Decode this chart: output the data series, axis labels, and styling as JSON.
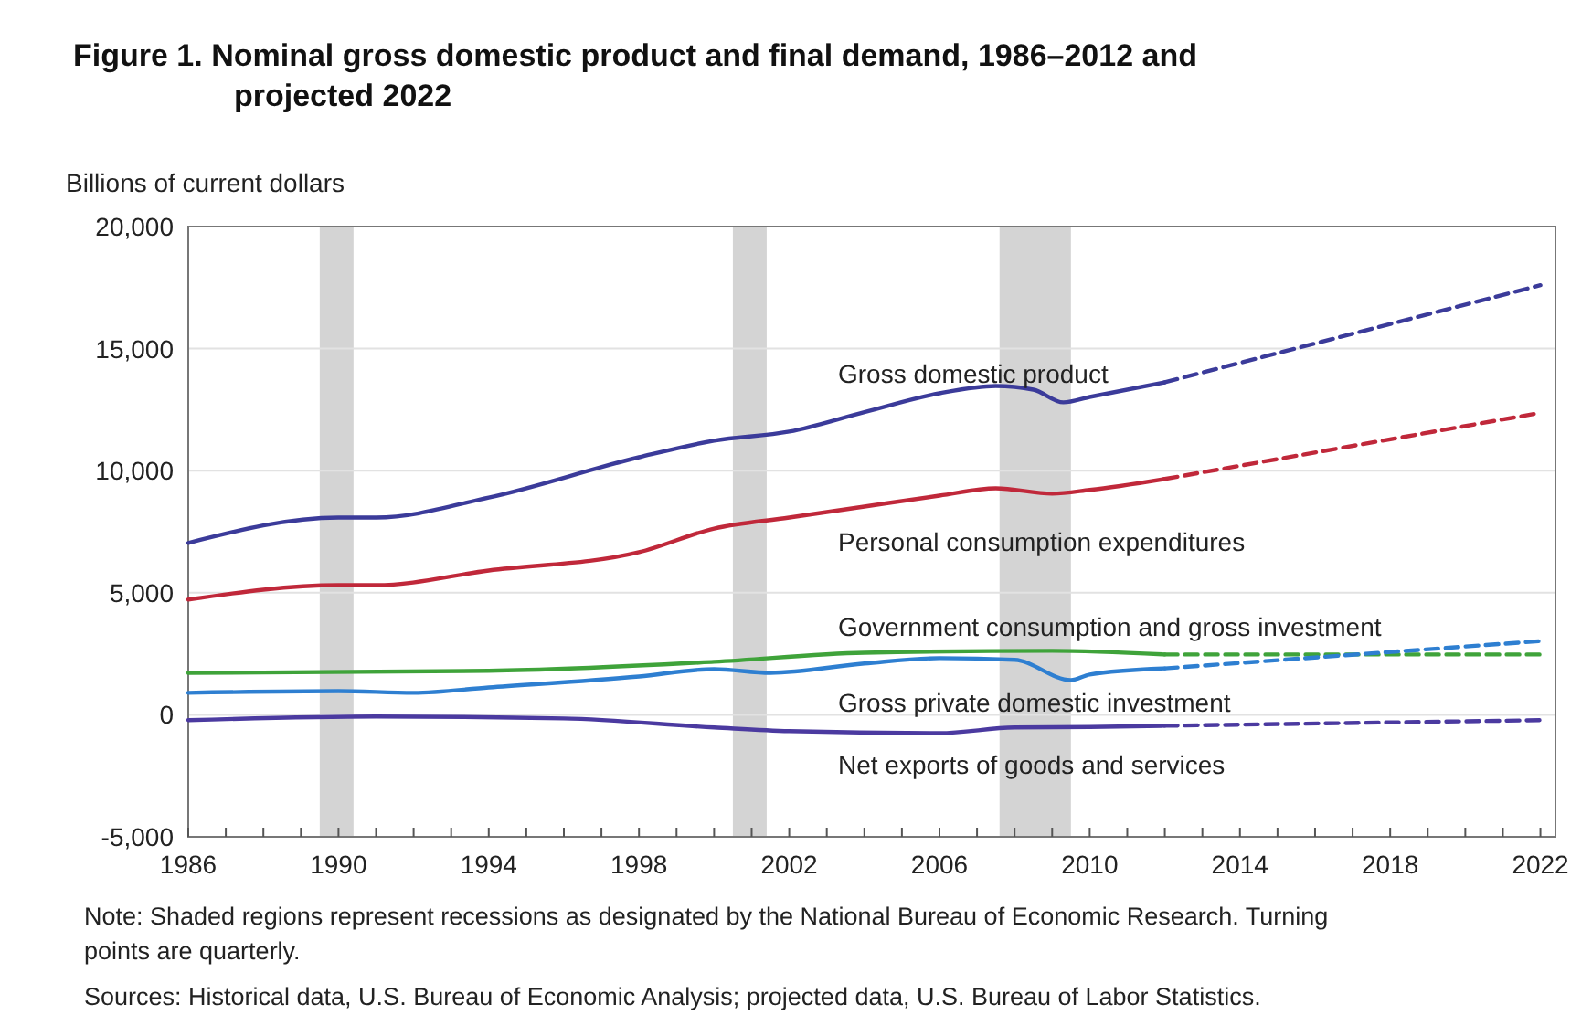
{
  "chart_data": {
    "type": "line",
    "title": "Figure 1. Nominal gross domestic product and final demand, 1986–2012 and projected 2022",
    "ylabel": "Billions of current dollars",
    "xlim": [
      1986,
      2022.4
    ],
    "ylim": [
      -5000,
      20000
    ],
    "xticks": [
      1986,
      {
        "value": 1987,
        "label": null
      },
      {
        "value": 1988,
        "label": null
      },
      {
        "value": 1989,
        "label": null
      },
      1990,
      {
        "value": 1991,
        "label": null
      },
      {
        "value": 1992,
        "label": null
      },
      {
        "value": 1993,
        "label": null
      },
      1994,
      {
        "value": 1995,
        "label": null
      },
      {
        "value": 1996,
        "label": null
      },
      {
        "value": 1997,
        "label": null
      },
      1998,
      {
        "value": 1999,
        "label": null
      },
      {
        "value": 2000,
        "label": null
      },
      {
        "value": 2001,
        "label": null
      },
      2002,
      {
        "value": 2003,
        "label": null
      },
      {
        "value": 2004,
        "label": null
      },
      {
        "value": 2005,
        "label": null
      },
      2006,
      {
        "value": 2007,
        "label": null
      },
      {
        "value": 2008,
        "label": null
      },
      {
        "value": 2009,
        "label": null
      },
      2010,
      {
        "value": 2011,
        "label": null
      },
      {
        "value": 2012,
        "label": null
      },
      {
        "value": 2013,
        "label": null
      },
      2014,
      {
        "value": 2015,
        "label": null
      },
      {
        "value": 2016,
        "label": null
      },
      {
        "value": 2017,
        "label": null
      },
      2018,
      {
        "value": 2019,
        "label": null
      },
      {
        "value": 2020,
        "label": null
      },
      {
        "value": 2021,
        "label": null
      },
      2022
    ],
    "yticks": [
      {
        "value": -5000,
        "label": "-5,000"
      },
      0,
      {
        "value": 5000,
        "label": "5,000"
      },
      {
        "value": 10000,
        "label": "10,000"
      },
      {
        "value": 15000,
        "label": "15,000"
      },
      {
        "value": 20000,
        "label": "20,000"
      }
    ],
    "grid": "y",
    "marker": "none",
    "bands": [
      {
        "axis": "x",
        "from": 1989.5,
        "to": 1990.4,
        "color": "#d4d4d4"
      },
      {
        "axis": "x",
        "from": 2000.5,
        "to": 2001.4,
        "color": "#d4d4d4"
      },
      {
        "axis": "x",
        "from": 2007.6,
        "to": 2009.5,
        "color": "#d4d4d4"
      }
    ],
    "series": [
      {
        "name": "Gross domestic product",
        "color": "#3b3b9a",
        "line_style": "solid",
        "x": [
          1986,
          1990,
          1991,
          1994,
          1998,
          2000,
          2002,
          2004,
          2006,
          2007.5,
          2008.5,
          2009.3,
          2010,
          2012
        ],
        "values": [
          7040,
          8080,
          8080,
          8900,
          10550,
          11230,
          11600,
          12400,
          13170,
          13470,
          13320,
          12800,
          13020,
          13620
        ]
      },
      {
        "name": "Personal consumption expenditures",
        "color": "#c0283a",
        "line_style": "solid",
        "x": [
          1986,
          1990,
          1991,
          1994,
          1998,
          2000,
          2002,
          2004,
          2006,
          2007.5,
          2009,
          2010,
          2012
        ],
        "values": [
          4720,
          5310,
          5310,
          5910,
          6660,
          7630,
          8080,
          8530,
          8980,
          9280,
          9060,
          9210,
          9660
        ]
      },
      {
        "name": "Government consumption and gross investment",
        "color": "#3fa33a",
        "line_style": "solid",
        "x": [
          1986,
          1994,
          2000,
          2004,
          2009,
          2012
        ],
        "values": [
          1720,
          1800,
          2170,
          2540,
          2620,
          2470
        ]
      },
      {
        "name": "Gross private domestic investment",
        "color": "#2e7fd1",
        "line_style": "solid",
        "x": [
          1986,
          1990,
          1992,
          1994,
          1998,
          2000,
          2001.5,
          2004,
          2006,
          2008,
          2009.5,
          2010,
          2012
        ],
        "values": [
          900,
          970,
          900,
          1120,
          1570,
          1870,
          1720,
          2100,
          2320,
          2250,
          1420,
          1650,
          1900
        ]
      },
      {
        "name": "Net exports of goods and services",
        "color": "#4b3aa0",
        "line_style": "solid",
        "x": [
          1986,
          1991,
          1996,
          2000,
          2002,
          2006,
          2008,
          2010,
          2012
        ],
        "values": [
          -220,
          -70,
          -150,
          -520,
          -670,
          -750,
          -520,
          -500,
          -450
        ]
      },
      {
        "color": "#3b3b9a",
        "line_style": "dashed",
        "x": [
          2012,
          2022
        ],
        "values": [
          13620,
          17600
        ]
      },
      {
        "color": "#c0283a",
        "line_style": "dashed",
        "x": [
          2012,
          2022
        ],
        "values": [
          9660,
          12370
        ]
      },
      {
        "color": "#3fa33a",
        "line_style": "dashed",
        "x": [
          2012,
          2022
        ],
        "values": [
          2470,
          2470
        ]
      },
      {
        "color": "#2e7fd1",
        "line_style": "dashed",
        "x": [
          2012,
          2022
        ],
        "values": [
          1900,
          3020
        ]
      },
      {
        "color": "#4b3aa0",
        "line_style": "dashed",
        "x": [
          2012,
          2022
        ],
        "values": [
          -450,
          -220
        ]
      }
    ],
    "annotations": [
      "Note: Shaded regions represent recessions as designated by the National Bureau of Economic Research. Turning points are quarterly.",
      "Sources: Historical data, U.S. Bureau of Economic Analysis; projected data, U.S. Bureau of Labor Statistics."
    ]
  }
}
